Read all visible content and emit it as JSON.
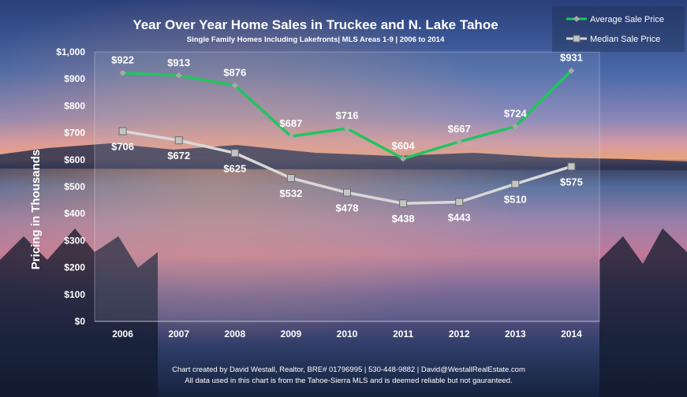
{
  "chart_data": {
    "type": "line",
    "title": "Year Over Year Home Sales in Truckee and N. Lake Tahoe",
    "subtitle": "Single Family Homes Including Lakefronts| MLS Areas 1-9 | 2006 to 2014",
    "xlabel": "",
    "ylabel": "Pricing in Thousands",
    "categories": [
      "2006",
      "2007",
      "2008",
      "2009",
      "2010",
      "2011",
      "2012",
      "2013",
      "2014"
    ],
    "yticks": [
      "$0",
      "$100",
      "$200",
      "$300",
      "$400",
      "$500",
      "$600",
      "$700",
      "$800",
      "$900",
      "$1,000"
    ],
    "ylim": [
      0,
      1000
    ],
    "grid": false,
    "legend_position": "top-right",
    "series": [
      {
        "name": "Average Sale Price",
        "color": "#22c45e",
        "marker_color": "#a8a8a8",
        "marker": "diamond",
        "label_position": "above",
        "values": [
          922,
          913,
          876,
          687,
          716,
          604,
          667,
          724,
          931
        ],
        "labels": [
          "$922",
          "$913",
          "$876",
          "$687",
          "$716",
          "$604",
          "$667",
          "$724",
          "$931"
        ]
      },
      {
        "name": "Median Sale Price",
        "color": "#d8d8d8",
        "marker_color": "#c4c4c4",
        "marker": "square",
        "label_position": "below",
        "values": [
          706,
          672,
          625,
          532,
          478,
          438,
          443,
          510,
          575
        ],
        "labels": [
          "$706",
          "$672",
          "$625",
          "$532",
          "$478",
          "$438",
          "$443",
          "$510",
          "$575"
        ]
      }
    ],
    "footer": [
      "Chart created by David Westall, Realtor, BRE# 01796995 | 530-448-9882 | David@WestallRealEstate.com",
      "All data used in this chart is from the Tahoe-Sierra MLS and is deemed reliable but  not gauranteed."
    ]
  }
}
